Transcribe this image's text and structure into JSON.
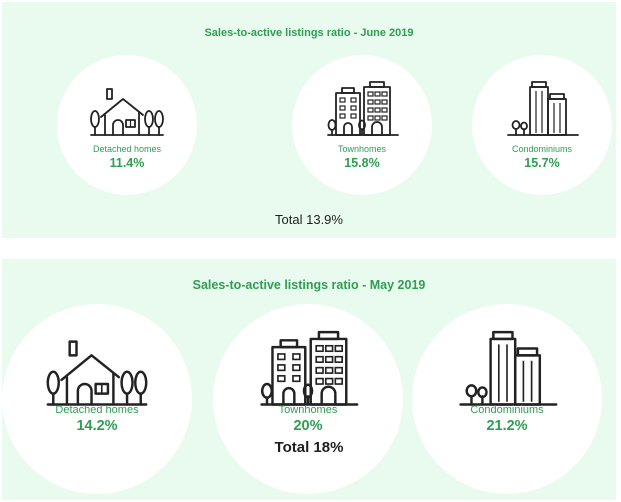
{
  "june": {
    "title": "Sales-to-active listings ratio - June 2019",
    "categories": [
      {
        "label": "Detached homes",
        "value": "11.4%",
        "icon": "detached-house-icon"
      },
      {
        "label": "Townhomes",
        "value": "15.8%",
        "icon": "townhome-buildings-icon"
      },
      {
        "label": "Condominiums",
        "value": "15.7%",
        "icon": "condo-towers-icon"
      }
    ],
    "total": "Total 13.9%"
  },
  "may": {
    "title": "Sales-to-active listings ratio - May 2019",
    "categories": [
      {
        "label": "Detached homes",
        "value": "14.2%",
        "icon": "detached-house-icon"
      },
      {
        "label": "Townhomes",
        "value": "20%",
        "icon": "townhome-buildings-icon"
      },
      {
        "label": "Condominiums",
        "value": "21.2%",
        "icon": "condo-towers-icon"
      }
    ],
    "total": "Total 18%"
  },
  "colors": {
    "panel_bg": "#e9fbef",
    "accent_green": "#2f9e52",
    "circle_bg": "#ffffff",
    "text_dark": "#1f1f1f"
  }
}
